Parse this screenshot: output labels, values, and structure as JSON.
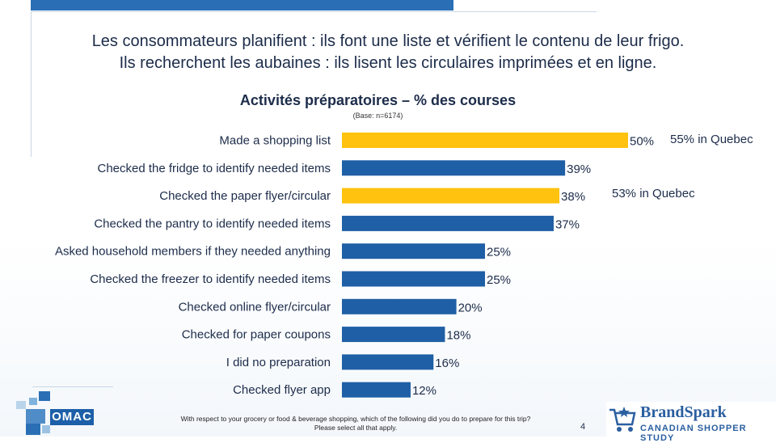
{
  "headline": {
    "line1": "Les consommateurs planifient : ils font une liste et vérifient le contenu de leur frigo.",
    "line2": "Ils recherchent les aubaines : ils lisent les circulaires imprimées et en ligne."
  },
  "chart_data": {
    "type": "bar",
    "orientation": "horizontal",
    "title": "Activités préparatoires – % des courses",
    "subtitle": "(Base: n=6174)",
    "categories": [
      "Made a shopping list",
      "Checked the fridge to identify needed items",
      "Checked the paper flyer/circular",
      "Checked the pantry to identify needed items",
      "Asked household members if they needed anything",
      "Checked the freezer to identify needed items",
      "Checked online flyer/circular",
      "Checked for paper coupons",
      "I did no preparation",
      "Checked flyer app"
    ],
    "values": [
      50,
      39,
      38,
      37,
      25,
      25,
      20,
      18,
      16,
      12
    ],
    "value_labels": [
      "50%",
      "39%",
      "38%",
      "37%",
      "25%",
      "25%",
      "20%",
      "18%",
      "16%",
      "12%"
    ],
    "bar_colors": [
      "#ffc20e",
      "#1f5fa5",
      "#ffc20e",
      "#1f5fa5",
      "#1f5fa5",
      "#1f5fa5",
      "#1f5fa5",
      "#1f5fa5",
      "#1f5fa5",
      "#1f5fa5"
    ],
    "xlim": [
      0,
      50
    ],
    "grid": false,
    "legend": "none",
    "annotations": [
      "55% in Quebec",
      "53% in Quebec"
    ]
  },
  "footnote": {
    "line1": "With respect to your grocery or food & beverage shopping, which of the following did you do to prepare for this trip?",
    "line2": "Please select all that apply."
  },
  "page_number": "4",
  "logos": {
    "omac": "OMAC",
    "brandspark_name": "BrandSpark",
    "brandspark_sub": "CANADIAN SHOPPER STUDY"
  },
  "colors": {
    "highlight": "#ffc20e",
    "primary": "#1f5fa5",
    "accent": "#2a6fb5"
  }
}
